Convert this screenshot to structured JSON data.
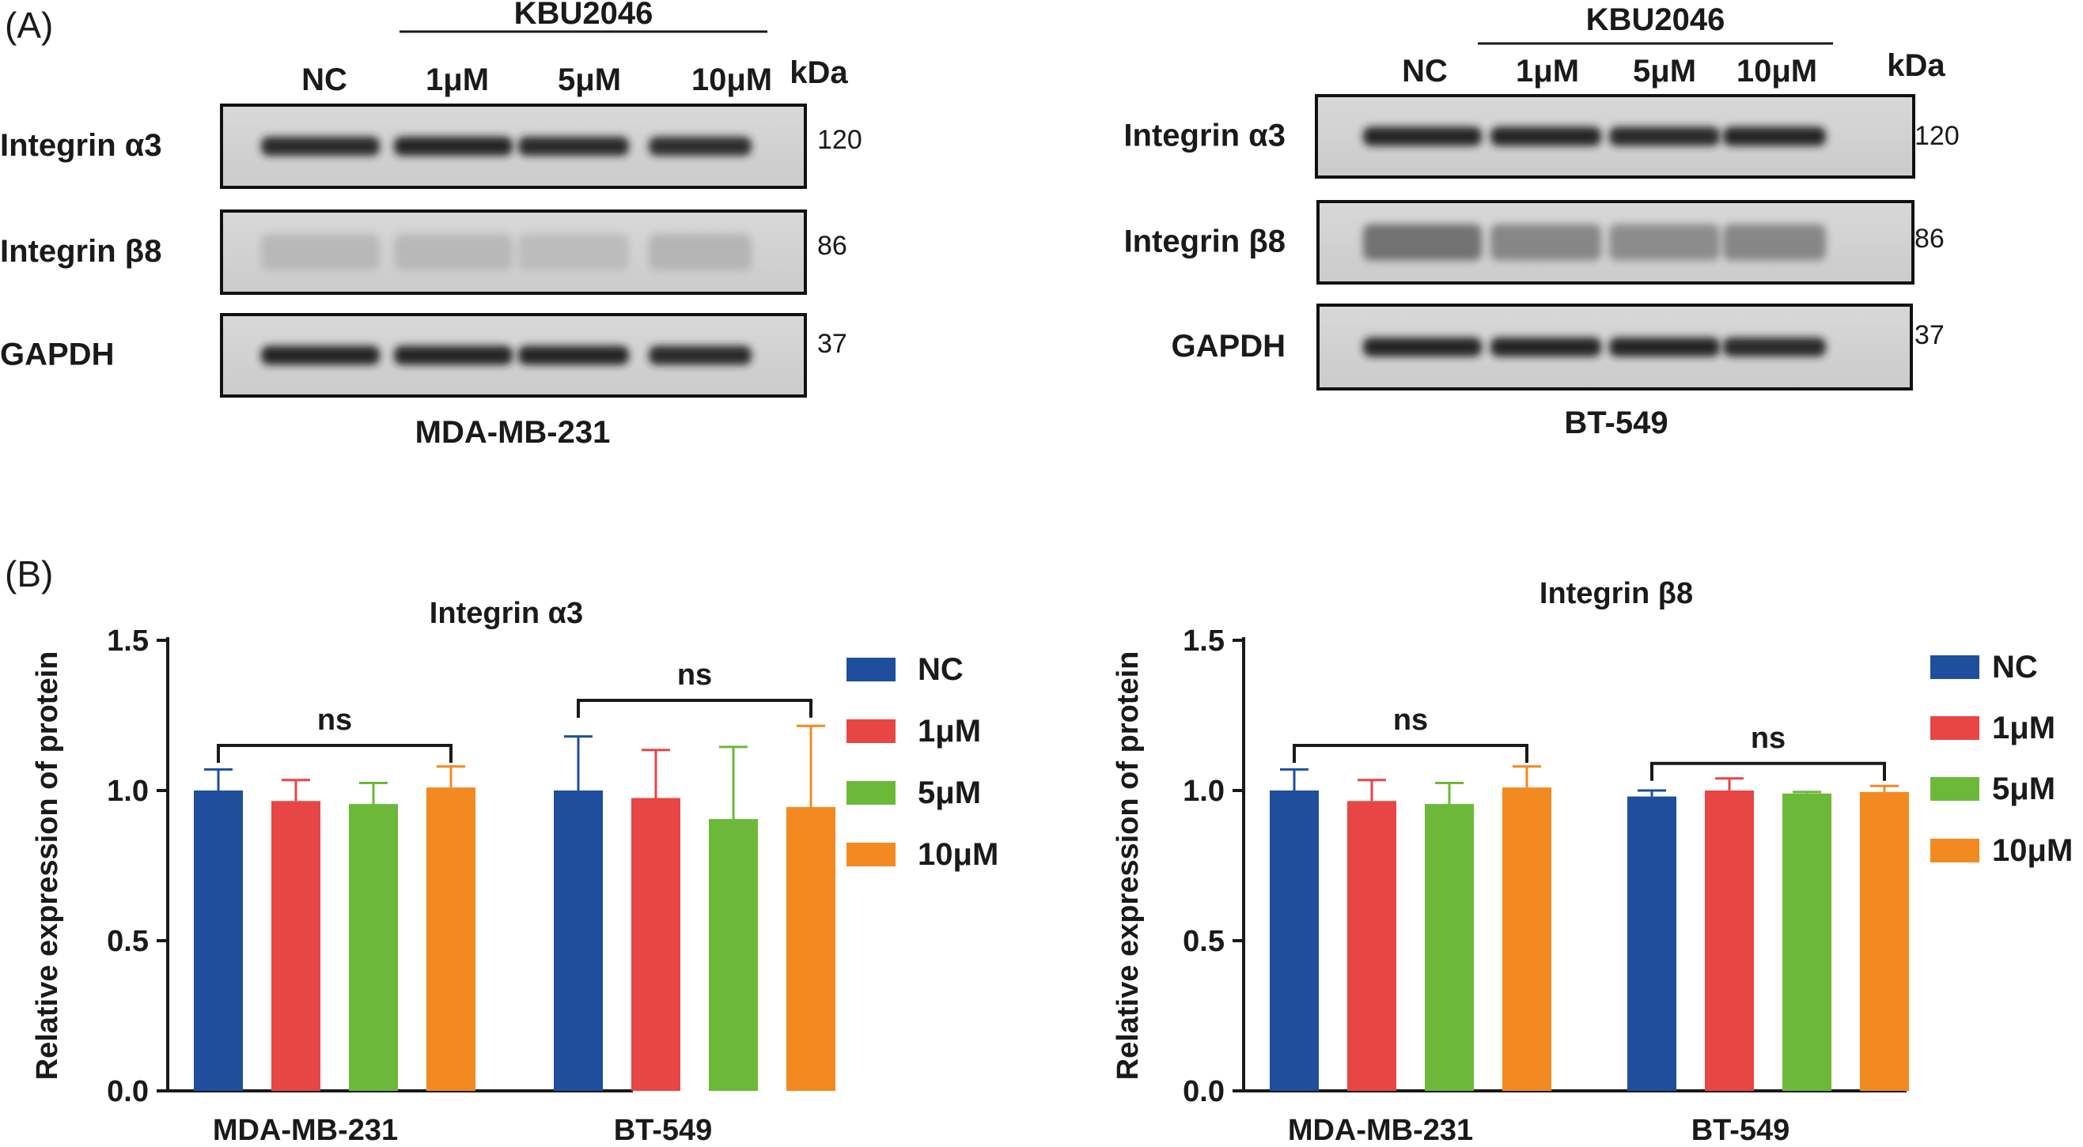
{
  "panel_a": {
    "label": "(A)",
    "treatment": "KBU2046",
    "kda_label": "kDa",
    "blots": [
      {
        "cell_line": "MDA-MB-231",
        "lanes": [
          "NC",
          "1μM",
          "5μM",
          "10μM"
        ],
        "rows": [
          {
            "protein": "Integrin α3",
            "kda": "120",
            "intensities": [
              0.92,
              0.93,
              0.9,
              0.88
            ]
          },
          {
            "protein": "Integrin β8",
            "kda": "86",
            "intensities": [
              0.2,
              0.2,
              0.18,
              0.22
            ]
          },
          {
            "protein": "GAPDH",
            "kda": "37",
            "intensities": [
              0.95,
              0.95,
              0.95,
              0.9
            ]
          }
        ]
      },
      {
        "cell_line": "BT-549",
        "lanes": [
          "NC",
          "1μM",
          "5μM",
          "10μM"
        ],
        "rows": [
          {
            "protein": "Integrin α3",
            "kda": "120",
            "intensities": [
              0.95,
              0.93,
              0.9,
              0.93
            ]
          },
          {
            "protein": "Integrin β8",
            "kda": "86",
            "intensities": [
              0.55,
              0.45,
              0.42,
              0.45
            ]
          },
          {
            "protein": "GAPDH",
            "kda": "37",
            "intensities": [
              0.95,
              0.93,
              0.93,
              0.9
            ]
          }
        ]
      }
    ]
  },
  "panel_b": {
    "label": "(B)"
  },
  "chart_data": [
    {
      "type": "bar",
      "title": "Integrin α3",
      "xlabel": "",
      "ylabel": "Relative expression of protein",
      "ylim": [
        0,
        1.5
      ],
      "yticks": [
        "0.0",
        "0.5",
        "1.0",
        "1.5"
      ],
      "categories": [
        "MDA-MB-231",
        "BT-549"
      ],
      "series": [
        {
          "name": "NC",
          "color": "#1f4e9c",
          "values": [
            1.0,
            1.0
          ],
          "errors": [
            0.07,
            0.18
          ]
        },
        {
          "name": "1μM",
          "color": "#e84545",
          "values": [
            0.965,
            0.975
          ],
          "errors": [
            0.07,
            0.16
          ]
        },
        {
          "name": "5μM",
          "color": "#6cb93a",
          "values": [
            0.955,
            0.905
          ],
          "errors": [
            0.07,
            0.24
          ]
        },
        {
          "name": "10μM",
          "color": "#f28a21",
          "values": [
            1.01,
            0.945
          ],
          "errors": [
            0.07,
            0.27
          ]
        }
      ],
      "annotations": [
        {
          "text": "ns",
          "category": "MDA-MB-231",
          "bracket_y": 1.15
        },
        {
          "text": "ns",
          "category": "BT-549",
          "bracket_y": 1.3
        }
      ]
    },
    {
      "type": "bar",
      "title": "Integrin β8",
      "xlabel": "",
      "ylabel": "Relative expression of protein",
      "ylim": [
        0,
        1.5
      ],
      "yticks": [
        "0.0",
        "0.5",
        "1.0",
        "1.5"
      ],
      "categories": [
        "MDA-MB-231",
        "BT-549"
      ],
      "series": [
        {
          "name": "NC",
          "color": "#1f4e9c",
          "values": [
            1.0,
            0.98
          ],
          "errors": [
            0.07,
            0.02
          ]
        },
        {
          "name": "1μM",
          "color": "#e84545",
          "values": [
            0.965,
            1.0
          ],
          "errors": [
            0.07,
            0.04
          ]
        },
        {
          "name": "5μM",
          "color": "#6cb93a",
          "values": [
            0.955,
            0.99
          ],
          "errors": [
            0.07,
            0.005
          ]
        },
        {
          "name": "10μM",
          "color": "#f28a21",
          "values": [
            1.01,
            0.995
          ],
          "errors": [
            0.07,
            0.02
          ]
        }
      ],
      "annotations": [
        {
          "text": "ns",
          "category": "MDA-MB-231",
          "bracket_y": 1.15
        },
        {
          "text": "ns",
          "category": "BT-549",
          "bracket_y": 1.09
        }
      ]
    }
  ]
}
